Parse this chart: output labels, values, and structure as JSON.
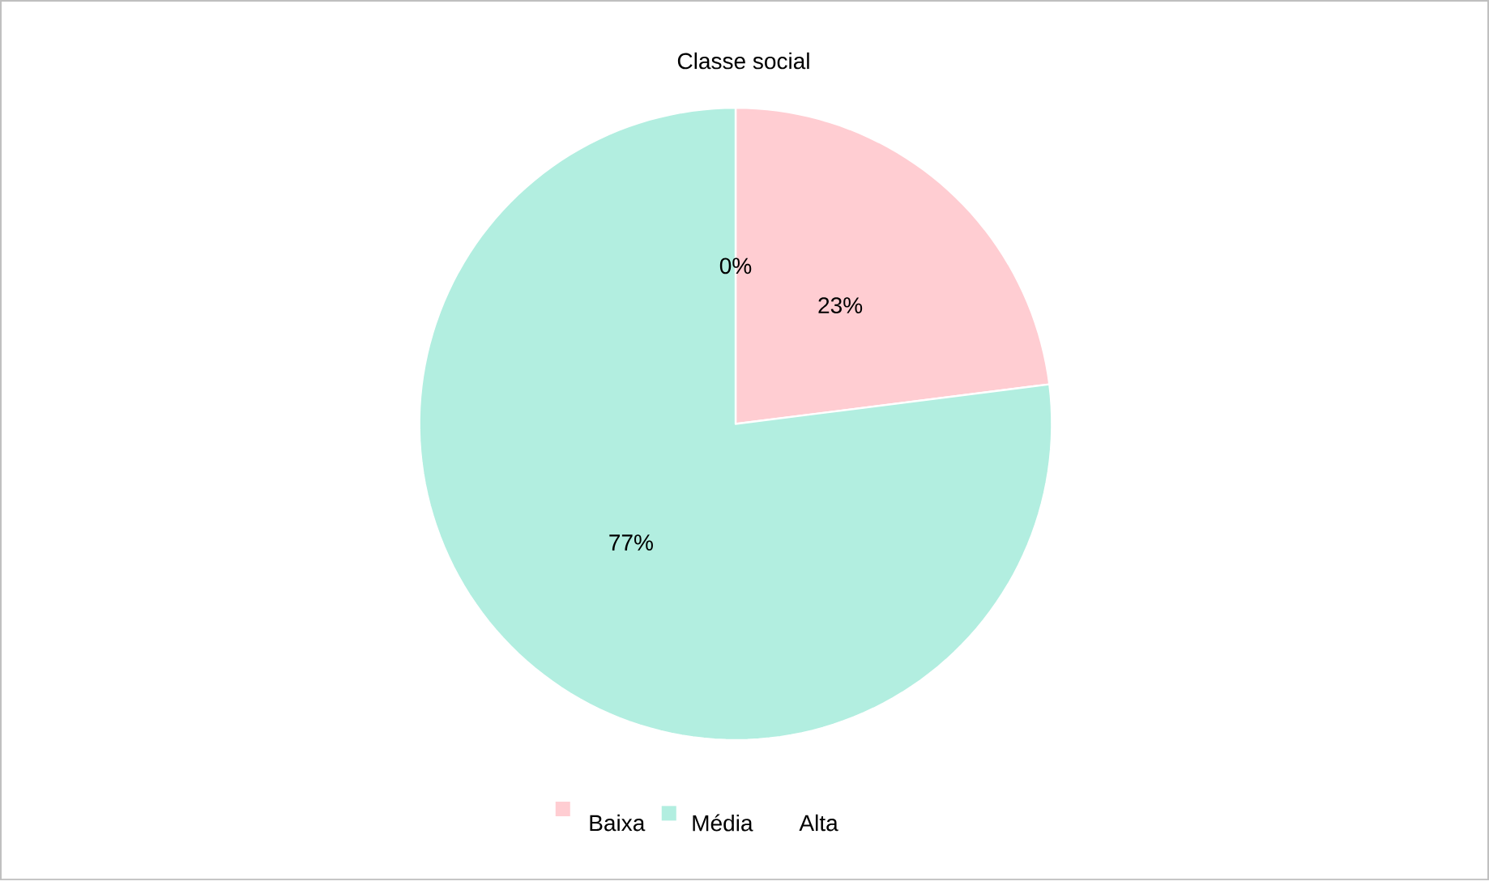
{
  "chart_data": {
    "type": "pie",
    "title": "Classe social",
    "categories": [
      "Baixa",
      "Média",
      "Alta"
    ],
    "values": [
      23,
      77,
      0
    ],
    "colors": [
      "#ffcdd2",
      "#b2eee0",
      "#ffffff"
    ],
    "value_labels": [
      "23%",
      "77%",
      "0%"
    ],
    "legend": "bottom"
  }
}
